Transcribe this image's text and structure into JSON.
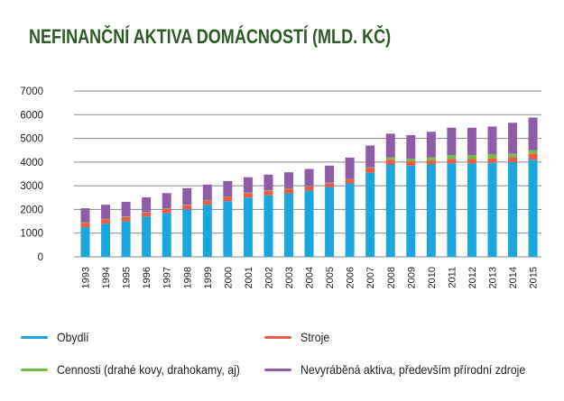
{
  "title": "NEFINANČNÍ AKTIVA DOMÁCNOSTÍ (MLD. KČ)",
  "colors": {
    "title": "#2e5a27",
    "grid": "#888888",
    "obydli": "#1ba6de",
    "stroje": "#ef5a45",
    "cennosti": "#72be44",
    "nevyrabena": "#8e5ca8"
  },
  "chart_data": {
    "type": "bar",
    "stacked": true,
    "title": "NEFINANČNÍ AKTIVA DOMÁCNOSTÍ (MLD. KČ)",
    "xlabel": "",
    "ylabel": "",
    "ylim": [
      0,
      7000
    ],
    "yticks": [
      "0",
      "1000",
      "2000",
      "3000",
      "4000",
      "5000",
      "6000",
      "7000"
    ],
    "grid": true,
    "legend_position": "bottom",
    "categories": [
      "1993",
      "1994",
      "1995",
      "1996",
      "1997",
      "1998",
      "1999",
      "2000",
      "2001",
      "2002",
      "2003",
      "2004",
      "2005",
      "2006",
      "2007",
      "2008",
      "2009",
      "2010",
      "2011",
      "2012",
      "2013",
      "2014",
      "2015"
    ],
    "series": [
      {
        "name": "Obydlí",
        "color": "#1ba6de",
        "values": [
          1250,
          1400,
          1500,
          1700,
          1850,
          2000,
          2200,
          2350,
          2500,
          2600,
          2680,
          2800,
          2950,
          3100,
          3550,
          3900,
          3850,
          3900,
          3950,
          3950,
          3970,
          4000,
          4100
        ]
      },
      {
        "name": "Stroje",
        "color": "#ef5a45",
        "values": [
          180,
          180,
          180,
          170,
          170,
          180,
          180,
          180,
          190,
          190,
          190,
          170,
          160,
          170,
          200,
          200,
          180,
          170,
          180,
          180,
          190,
          210,
          250
        ]
      },
      {
        "name": "Cennosti (drahé kovy, drahokamy, aj)",
        "color": "#72be44",
        "values": [
          20,
          20,
          20,
          20,
          20,
          20,
          20,
          20,
          20,
          20,
          20,
          20,
          20,
          20,
          30,
          100,
          110,
          130,
          170,
          170,
          180,
          150,
          150
        ]
      },
      {
        "name": "Nevyráběná aktiva, především přírodní zdroje",
        "color": "#8e5ca8",
        "values": [
          600,
          600,
          620,
          620,
          650,
          700,
          650,
          650,
          650,
          660,
          680,
          720,
          720,
          900,
          920,
          1000,
          1000,
          1080,
          1150,
          1150,
          1160,
          1300,
          1380
        ]
      }
    ]
  },
  "legend": [
    {
      "label": "Obydlí",
      "color": "#1ba6de"
    },
    {
      "label": "Stroje",
      "color": "#ef5a45"
    },
    {
      "label": "Cennosti (drahé kovy, drahokamy, aj)",
      "color": "#72be44"
    },
    {
      "label": "Nevyráběná aktiva, především přírodní zdroje",
      "color": "#8e5ca8"
    }
  ]
}
